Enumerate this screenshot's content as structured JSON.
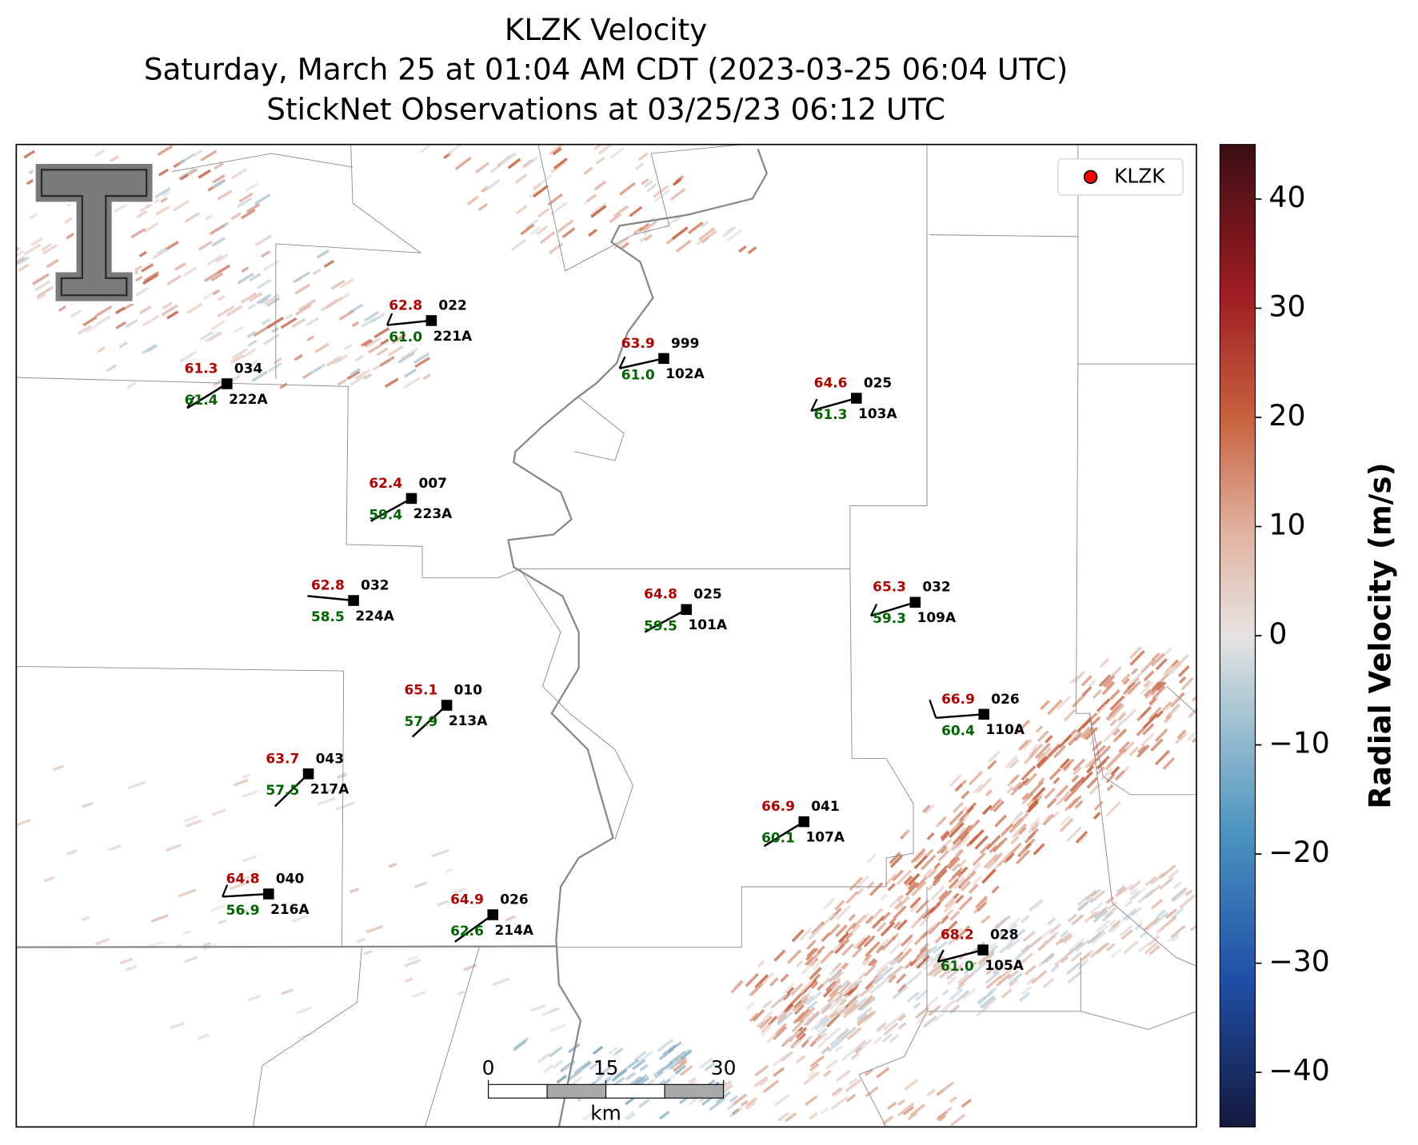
{
  "header": {
    "title": "KLZK Velocity",
    "subtitle": "Saturday, March 25 at 01:04 AM CDT (2023-03-25 06:04 UTC)",
    "observations": "StickNet Observations at 03/25/23 06:12 UTC"
  },
  "legend": {
    "label": "KLZK",
    "color": "#ff0000"
  },
  "colorbar": {
    "label": "Radial Velocity (m/s)",
    "lim": [
      -45,
      45
    ],
    "ticks": [
      40,
      30,
      20,
      10,
      0,
      {
        "value": -10,
        "label": "−10"
      },
      {
        "value": -20,
        "label": "−20"
      },
      {
        "value": -30,
        "label": "−30"
      },
      {
        "value": -40,
        "label": "−40"
      }
    ]
  },
  "scale_bar": {
    "ticks": [
      0,
      15,
      30
    ],
    "unit": "km"
  },
  "stations": [
    {
      "id": "221A",
      "temperature": "62.8",
      "dewpoint": "61.0",
      "direction": "022"
    },
    {
      "id": "222A",
      "temperature": "61.3",
      "dewpoint": "61.4",
      "direction": "034"
    },
    {
      "id": "102A",
      "temperature": "63.9",
      "dewpoint": "61.0",
      "direction": "999"
    },
    {
      "id": "103A",
      "temperature": "64.6",
      "dewpoint": "61.3",
      "direction": "025"
    },
    {
      "id": "223A",
      "temperature": "62.4",
      "dewpoint": "59.4",
      "direction": "007"
    },
    {
      "id": "224A",
      "temperature": "62.8",
      "dewpoint": "58.5",
      "direction": "032"
    },
    {
      "id": "101A",
      "temperature": "64.8",
      "dewpoint": "59.5",
      "direction": "025"
    },
    {
      "id": "109A",
      "temperature": "65.3",
      "dewpoint": "59.3",
      "direction": "032"
    },
    {
      "id": "110A",
      "temperature": "66.9",
      "dewpoint": "60.4",
      "direction": "026"
    },
    {
      "id": "213A",
      "temperature": "65.1",
      "dewpoint": "57.9",
      "direction": "010"
    },
    {
      "id": "217A",
      "temperature": "63.7",
      "dewpoint": "57.5",
      "direction": "043"
    },
    {
      "id": "107A",
      "temperature": "66.9",
      "dewpoint": "60.1",
      "direction": "041"
    },
    {
      "id": "216A",
      "temperature": "64.8",
      "dewpoint": "56.9",
      "direction": "040"
    },
    {
      "id": "214A",
      "temperature": "64.9",
      "dewpoint": "62.6",
      "direction": "026"
    },
    {
      "id": "105A",
      "temperature": "68.2",
      "dewpoint": "61.0",
      "direction": "028"
    }
  ]
}
